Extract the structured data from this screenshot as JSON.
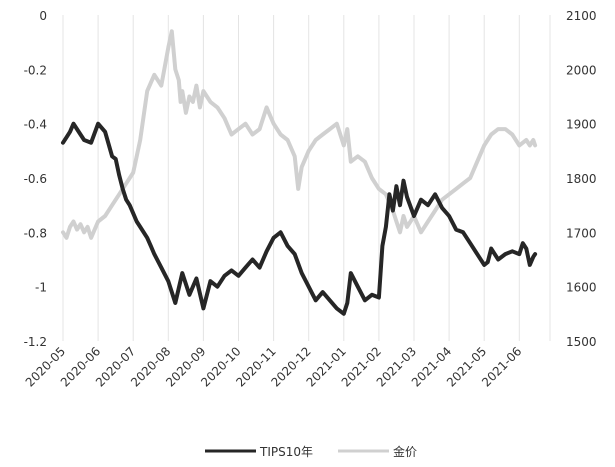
{
  "chart_data": {
    "type": "line",
    "title": "",
    "dual_axis": true,
    "grid": "vertical",
    "legend_position": "bottom",
    "x_ticks": [
      "2020-05",
      "2020-06",
      "2020-07",
      "2020-08",
      "2020-09",
      "2020-10",
      "2020-11",
      "2020-12",
      "2021-01",
      "2021-02",
      "2021-03",
      "2021-04",
      "2021-05",
      "2021-06"
    ],
    "y_left": {
      "min": -1.2,
      "max": 0,
      "ticks": [
        0,
        -0.2,
        -0.4,
        -0.6,
        -0.8,
        -1,
        -1.2
      ],
      "tick_labels": [
        "0",
        "-0.2",
        "-0.4",
        "-0.6",
        "-0.8",
        "-1",
        "-1.2"
      ]
    },
    "y_right": {
      "min": 1500,
      "max": 2100,
      "ticks": [
        2100,
        2000,
        1900,
        1800,
        1700,
        1600,
        1500
      ],
      "tick_labels": [
        "2100",
        "2000",
        "1900",
        "1800",
        "1700",
        "1600",
        "1500"
      ]
    },
    "series": [
      {
        "name": "TIPS10年",
        "axis": "left",
        "color": "#262626",
        "x": [
          0,
          0.1,
          0.2,
          0.3,
          0.4,
          0.5,
          0.6,
          0.8,
          1.0,
          1.2,
          1.4,
          1.5,
          1.6,
          1.7,
          1.8,
          1.9,
          2.0,
          2.1,
          2.2,
          2.4,
          2.5,
          2.6,
          2.8,
          3.0,
          3.2,
          3.4,
          3.6,
          3.8,
          4.0,
          4.2,
          4.4,
          4.6,
          4.8,
          5.0,
          5.2,
          5.4,
          5.6,
          5.8,
          6.0,
          6.2,
          6.4,
          6.6,
          6.8,
          7.0,
          7.2,
          7.4,
          7.6,
          7.8,
          8.0,
          8.1,
          8.2,
          8.4,
          8.6,
          8.8,
          9.0,
          9.1,
          9.2,
          9.3,
          9.4,
          9.5,
          9.6,
          9.7,
          9.8,
          10.0,
          10.2,
          10.4,
          10.6,
          10.8,
          11.0,
          11.2,
          11.4,
          11.6,
          11.8,
          12.0,
          12.1,
          12.2,
          12.4,
          12.6,
          12.8,
          13.0,
          13.1,
          13.2,
          13.3,
          13.4,
          13.45
        ],
        "values": [
          -0.47,
          -0.45,
          -0.43,
          -0.4,
          -0.42,
          -0.44,
          -0.46,
          -0.47,
          -0.4,
          -0.43,
          -0.52,
          -0.53,
          -0.59,
          -0.64,
          -0.68,
          -0.7,
          -0.73,
          -0.76,
          -0.78,
          -0.82,
          -0.85,
          -0.88,
          -0.93,
          -0.98,
          -1.06,
          -0.95,
          -1.03,
          -0.97,
          -1.08,
          -0.98,
          -1.0,
          -0.96,
          -0.94,
          -0.96,
          -0.93,
          -0.9,
          -0.93,
          -0.87,
          -0.82,
          -0.8,
          -0.85,
          -0.88,
          -0.95,
          -1.0,
          -1.05,
          -1.02,
          -1.05,
          -1.08,
          -1.1,
          -1.06,
          -0.95,
          -1.0,
          -1.05,
          -1.03,
          -1.04,
          -0.85,
          -0.78,
          -0.66,
          -0.72,
          -0.63,
          -0.7,
          -0.61,
          -0.67,
          -0.74,
          -0.68,
          -0.7,
          -0.66,
          -0.71,
          -0.74,
          -0.79,
          -0.8,
          -0.84,
          -0.88,
          -0.92,
          -0.91,
          -0.86,
          -0.9,
          -0.88,
          -0.87,
          -0.88,
          -0.84,
          -0.86,
          -0.92,
          -0.89,
          -0.88
        ]
      },
      {
        "name": "金价",
        "axis": "right",
        "color": "#d0d0d0",
        "x": [
          0,
          0.1,
          0.2,
          0.3,
          0.4,
          0.5,
          0.6,
          0.7,
          0.8,
          1.0,
          1.2,
          1.4,
          1.6,
          1.8,
          2.0,
          2.2,
          2.4,
          2.6,
          2.8,
          3.0,
          3.1,
          3.2,
          3.3,
          3.35,
          3.4,
          3.5,
          3.6,
          3.7,
          3.8,
          3.9,
          4.0,
          4.2,
          4.4,
          4.6,
          4.8,
          5.0,
          5.2,
          5.4,
          5.6,
          5.8,
          6.0,
          6.2,
          6.4,
          6.6,
          6.7,
          6.8,
          7.0,
          7.2,
          7.4,
          7.6,
          7.8,
          8.0,
          8.1,
          8.2,
          8.4,
          8.6,
          8.8,
          9.0,
          9.2,
          9.4,
          9.5,
          9.6,
          9.7,
          9.8,
          9.9,
          10.0,
          10.2,
          10.4,
          10.6,
          10.8,
          11.0,
          11.2,
          11.4,
          11.6,
          11.8,
          12.0,
          12.2,
          12.4,
          12.6,
          12.8,
          13.0,
          13.2,
          13.3,
          13.4,
          13.45
        ],
        "values": [
          1700,
          1690,
          1710,
          1720,
          1705,
          1715,
          1700,
          1710,
          1690,
          1720,
          1730,
          1750,
          1770,
          1790,
          1810,
          1870,
          1960,
          1990,
          1970,
          2040,
          2070,
          2000,
          1980,
          1940,
          1960,
          1920,
          1950,
          1940,
          1970,
          1930,
          1960,
          1940,
          1930,
          1910,
          1880,
          1890,
          1900,
          1880,
          1890,
          1930,
          1900,
          1880,
          1870,
          1840,
          1780,
          1820,
          1850,
          1870,
          1880,
          1890,
          1900,
          1860,
          1890,
          1830,
          1840,
          1830,
          1800,
          1780,
          1770,
          1740,
          1720,
          1700,
          1730,
          1710,
          1720,
          1730,
          1700,
          1720,
          1740,
          1760,
          1770,
          1780,
          1790,
          1800,
          1830,
          1860,
          1880,
          1890,
          1890,
          1880,
          1860,
          1870,
          1860,
          1870,
          1860
        ]
      }
    ]
  }
}
